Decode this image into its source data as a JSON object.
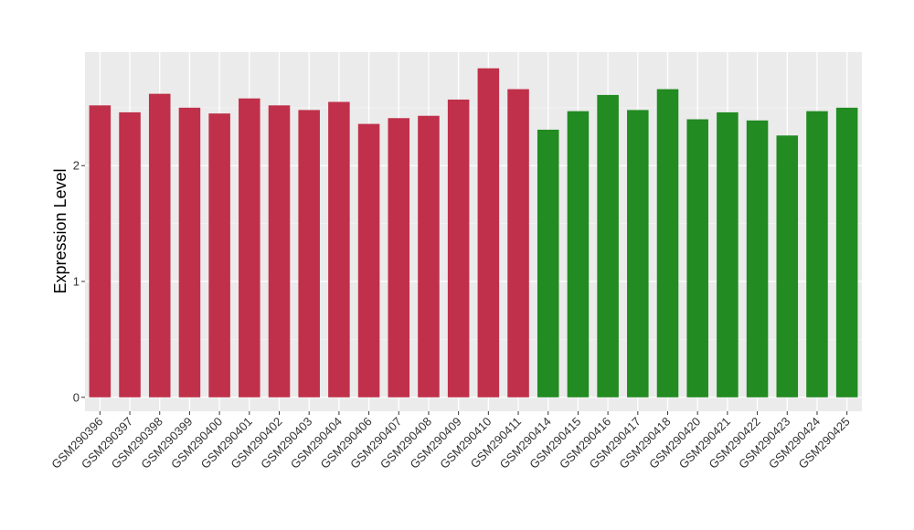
{
  "chart_data": {
    "type": "bar",
    "title": "",
    "xlabel": "",
    "ylabel": "Expression Level",
    "ylim": [
      -0.12,
      2.98
    ],
    "yticks": [
      0,
      1,
      2
    ],
    "grid": true,
    "panel_color": "#ebebeb",
    "categories": [
      "GSM290396",
      "GSM290397",
      "GSM290398",
      "GSM290399",
      "GSM290400",
      "GSM290401",
      "GSM290402",
      "GSM290403",
      "GSM290404",
      "GSM290406",
      "GSM290407",
      "GSM290408",
      "GSM290409",
      "GSM290410",
      "GSM290411",
      "GSM290414",
      "GSM290415",
      "GSM290416",
      "GSM290417",
      "GSM290418",
      "GSM290420",
      "GSM290421",
      "GSM290422",
      "GSM290423",
      "GSM290424",
      "GSM290425"
    ],
    "values": [
      2.52,
      2.46,
      2.62,
      2.5,
      2.45,
      2.58,
      2.52,
      2.48,
      2.55,
      2.36,
      2.41,
      2.43,
      2.57,
      2.84,
      2.66,
      2.31,
      2.47,
      2.61,
      2.48,
      2.66,
      2.4,
      2.46,
      2.39,
      2.26,
      2.47,
      2.5
    ],
    "colors": [
      "#c0304a",
      "#c0304a",
      "#c0304a",
      "#c0304a",
      "#c0304a",
      "#c0304a",
      "#c0304a",
      "#c0304a",
      "#c0304a",
      "#c0304a",
      "#c0304a",
      "#c0304a",
      "#c0304a",
      "#c0304a",
      "#c0304a",
      "#228b22",
      "#228b22",
      "#228b22",
      "#228b22",
      "#228b22",
      "#228b22",
      "#228b22",
      "#228b22",
      "#228b22",
      "#228b22",
      "#228b22"
    ]
  }
}
